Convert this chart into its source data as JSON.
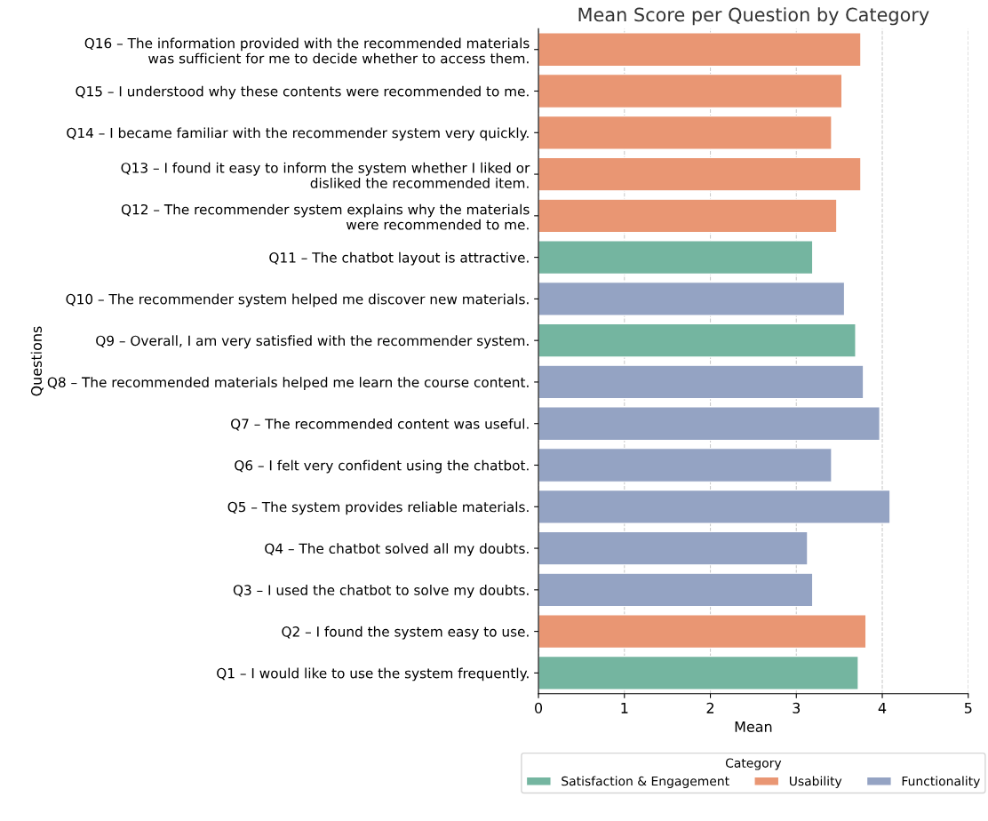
{
  "chart_data": {
    "type": "bar",
    "orientation": "horizontal",
    "title": "Mean Score per Question by Category",
    "xlabel": "Mean",
    "ylabel": "Questions",
    "legend_title": "Category",
    "categories": [
      "Q16 – The information provided with the recommended materials\nwas sufficient for me to decide whether to access them.",
      "Q15 – I understood why these contents were recommended to me.",
      "Q14 – I became familiar with the recommender system very quickly.",
      "Q13 – I found it easy to inform the system whether I liked or\ndisliked the recommended item.",
      "Q12 – The recommender system explains why the materials\nwere recommended to me.",
      "Q11 – The chatbot layout is attractive.",
      "Q10 – The recommender system helped me discover new materials.",
      "Q9 – Overall, I am very satisfied with the recommender system.",
      "Q8 – The recommended materials helped me learn the course content.",
      "Q7 – The recommended content was useful.",
      "Q6 – I felt very confident using the chatbot.",
      "Q5 – The system provides reliable materials.",
      "Q4 – The chatbot solved all my doubts.",
      "Q3 – I used the chatbot to solve my doubts.",
      "Q2 – I found the system easy to use.",
      "Q1 – I would like to use the system frequently."
    ],
    "series": [
      {
        "name": "Satisfaction & Engagement",
        "color": "#74b5a0",
        "values": [
          null,
          null,
          null,
          null,
          null,
          3.19,
          null,
          3.69,
          null,
          null,
          null,
          null,
          null,
          null,
          null,
          3.72
        ]
      },
      {
        "name": "Usability",
        "color": "#e99673",
        "values": [
          3.75,
          3.53,
          3.41,
          3.75,
          3.47,
          null,
          null,
          null,
          null,
          null,
          null,
          null,
          null,
          null,
          3.81,
          null
        ]
      },
      {
        "name": "Functionality",
        "color": "#94a3c3",
        "values": [
          null,
          null,
          null,
          null,
          null,
          null,
          3.56,
          null,
          3.78,
          3.97,
          3.41,
          4.09,
          3.13,
          3.19,
          null,
          null
        ]
      }
    ],
    "xlim": [
      0,
      5
    ],
    "xticks": [
      0,
      1,
      2,
      3,
      4,
      5
    ],
    "grid": "x",
    "legend": "bottom"
  }
}
